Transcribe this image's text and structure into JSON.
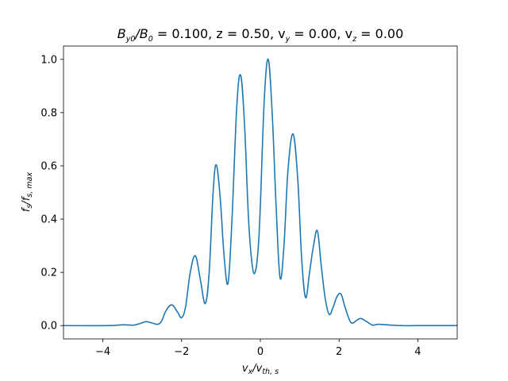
{
  "chart_data": {
    "type": "line",
    "title": {
      "main": "B",
      "sub1": "y0",
      "mid": "/B",
      "sub2": "0",
      "rest": " = 0.100, z = 0.50, v",
      "sub3": "y",
      "rest2": " = 0.00, v",
      "sub4": "z",
      "rest3": " = 0.00"
    },
    "xlabel": {
      "main": "v",
      "sub1": "x",
      "mid": "/v",
      "sub2": "th, s"
    },
    "ylabel": {
      "main": "f",
      "sub1": "s",
      "mid": "/f",
      "sub2": "s, max"
    },
    "xlim": [
      -5,
      5
    ],
    "ylim": [
      -0.05,
      1.05
    ],
    "xticks": [
      -4,
      -2,
      0,
      2,
      4
    ],
    "xtick_labels": [
      "−4",
      "−2",
      "0",
      "2",
      "4"
    ],
    "yticks": [
      0.0,
      0.2,
      0.4,
      0.6,
      0.8,
      1.0
    ],
    "ytick_labels": [
      "0.0",
      "0.2",
      "0.4",
      "0.6",
      "0.8",
      "1.0"
    ],
    "grid": false,
    "series": [
      {
        "color": "#1f77b4",
        "x": [
          -5.0,
          -3.9,
          -3.5,
          -3.3,
          -3.2,
          -3.05,
          -2.9,
          -2.75,
          -2.6,
          -2.5,
          -2.4,
          -2.25,
          -2.1,
          -2.0,
          -1.9,
          -1.78,
          -1.65,
          -1.52,
          -1.4,
          -1.3,
          -1.2,
          -1.12,
          -1.02,
          -0.92,
          -0.82,
          -0.72,
          -0.6,
          -0.5,
          -0.4,
          -0.3,
          -0.2,
          -0.12,
          -0.05,
          0.0,
          0.1,
          0.2,
          0.3,
          0.4,
          0.5,
          0.6,
          0.7,
          0.83,
          0.95,
          1.05,
          1.15,
          1.25,
          1.35,
          1.45,
          1.55,
          1.65,
          1.75,
          1.85,
          1.95,
          2.05,
          2.15,
          2.3,
          2.45,
          2.55,
          2.7,
          2.85,
          3.0,
          3.3,
          3.6,
          4.0,
          5.0
        ],
        "y": [
          0.0,
          0.0,
          0.003,
          0.002,
          0.002,
          0.008,
          0.015,
          0.01,
          0.005,
          0.02,
          0.055,
          0.078,
          0.05,
          0.03,
          0.07,
          0.2,
          0.262,
          0.17,
          0.083,
          0.2,
          0.5,
          0.604,
          0.48,
          0.26,
          0.16,
          0.4,
          0.82,
          0.94,
          0.75,
          0.4,
          0.22,
          0.207,
          0.3,
          0.45,
          0.85,
          1.0,
          0.8,
          0.45,
          0.18,
          0.3,
          0.58,
          0.72,
          0.55,
          0.25,
          0.105,
          0.2,
          0.3,
          0.355,
          0.22,
          0.1,
          0.042,
          0.07,
          0.11,
          0.118,
          0.07,
          0.012,
          0.02,
          0.027,
          0.015,
          0.002,
          0.005,
          0.002,
          0.0,
          0.0,
          0.0
        ]
      }
    ]
  }
}
